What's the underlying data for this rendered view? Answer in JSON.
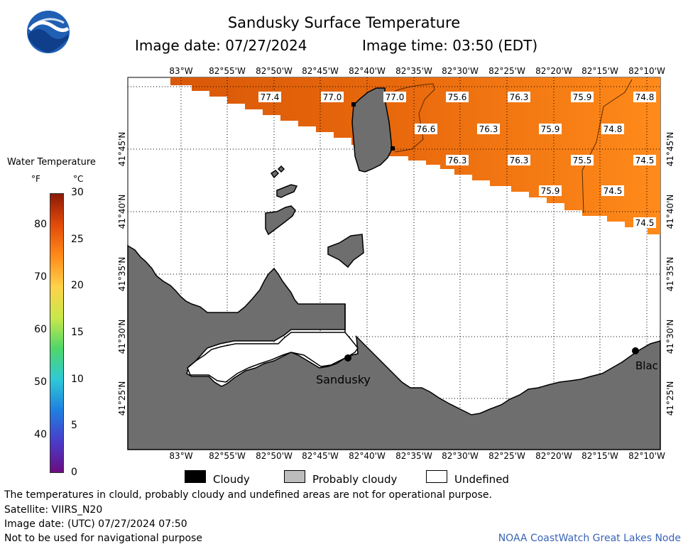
{
  "header": {
    "title": "Sandusky Surface Temperature",
    "image_date": "Image date: 07/27/2024",
    "image_time": "Image time: 03:50 (EDT)"
  },
  "colorbar": {
    "title": "Water Temperature",
    "unit_f": "°F",
    "unit_c": "°C",
    "f_ticks": [
      "80",
      "70",
      "60",
      "50",
      "40"
    ],
    "c_ticks": [
      "30",
      "25",
      "20",
      "15",
      "10",
      "5",
      "0"
    ],
    "stops": [
      "#6a0d80",
      "#4a3cc9",
      "#1e7fe0",
      "#2fc9d6",
      "#4fd66a",
      "#c9e84a",
      "#ffd24a",
      "#ff8a1a",
      "#e24a0a",
      "#8a1a08"
    ]
  },
  "axes": {
    "lon_ticks": [
      "83°W",
      "82°55'W",
      "82°50'W",
      "82°45'W",
      "82°40'W",
      "82°35'W",
      "82°30'W",
      "82°25'W",
      "82°20'W",
      "82°15'W",
      "82°10'W"
    ],
    "lat_ticks": [
      "41°45'N",
      "41°40'N",
      "41°35'N",
      "41°30'N",
      "41°25'N"
    ]
  },
  "temperature_labels": [
    {
      "value": "77.4"
    },
    {
      "value": "77.0"
    },
    {
      "value": "77.0"
    },
    {
      "value": "75.6"
    },
    {
      "value": "76.3"
    },
    {
      "value": "75.9"
    },
    {
      "value": "74.8"
    },
    {
      "value": "76.6"
    },
    {
      "value": "76.3"
    },
    {
      "value": "75.9"
    },
    {
      "value": "74.8"
    },
    {
      "value": "76.3"
    },
    {
      "value": "76.3"
    },
    {
      "value": "75.5"
    },
    {
      "value": "74.5"
    },
    {
      "value": "75.9"
    },
    {
      "value": "74.5"
    },
    {
      "value": "74.5"
    }
  ],
  "places": {
    "sandusky": "Sandusky",
    "blac": "Blac"
  },
  "legend": {
    "cloudy": "Cloudy",
    "probably_cloudy": "Probably cloudy",
    "undefined": "Undefined"
  },
  "footer": {
    "disclaimer": "The temperatures in clould, probably cloudy and undefined areas are not for operational purpose.",
    "satellite": "Satellite: VIIRS_N20",
    "utc_date": "Image date: (UTC) 07/27/2024  07:50",
    "nav_warning": "Not to be used for navigational purpose",
    "credit": "NOAA CoastWatch Great Lakes Node"
  },
  "colors": {
    "land": "#6e6e6e",
    "water_warm": "#e0640a",
    "water_cool": "#ff8a1a",
    "noaa_blue": "#1f5fb4"
  }
}
